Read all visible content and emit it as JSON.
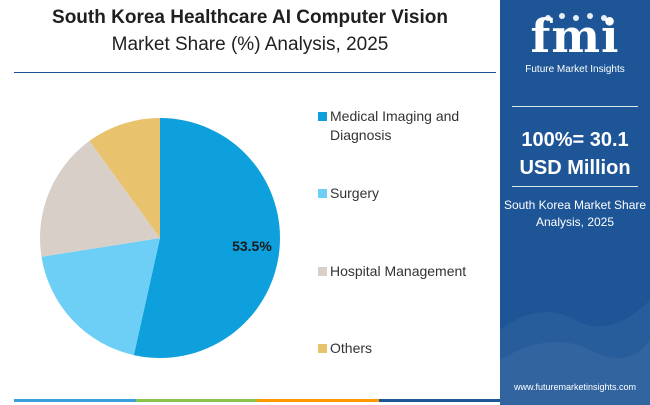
{
  "title": {
    "line1": "South Korea Healthcare AI Computer Vision",
    "line2": "Market Share (%) Analysis, 2025"
  },
  "panel": {
    "logo_text": "fmi",
    "logo_subtitle": "Future Market Insights",
    "total_line1": "100%= 30.1",
    "total_line2": "USD Million",
    "caption_line1": "South Korea Market Share",
    "caption_line2": "Analysis, 2025",
    "url": "www.futuremarketinsights.com"
  },
  "colors": {
    "panel_bg": "#1d5596",
    "bottom_bar": [
      "#3aa0dc",
      "#8bc34a",
      "#ff9800",
      "#1d5596"
    ]
  },
  "chart_data": {
    "type": "pie",
    "title": "South Korea Healthcare AI Computer Vision Market Share (%) Analysis, 2025",
    "total": "100%= 30.1 USD Million",
    "slices": [
      {
        "label": "Medical Imaging and Diagnosis",
        "value": 53.5,
        "color": "#0ea0dd",
        "data_label": "53.5%"
      },
      {
        "label": "Surgery",
        "value": 19.0,
        "color": "#6dcff6",
        "data_label": ""
      },
      {
        "label": "Hospital Management",
        "value": 17.5,
        "color": "#d9cfc9",
        "data_label": ""
      },
      {
        "label": "Others",
        "value": 10.0,
        "color": "#e8c26c",
        "data_label": ""
      }
    ],
    "legend_position": "right"
  }
}
